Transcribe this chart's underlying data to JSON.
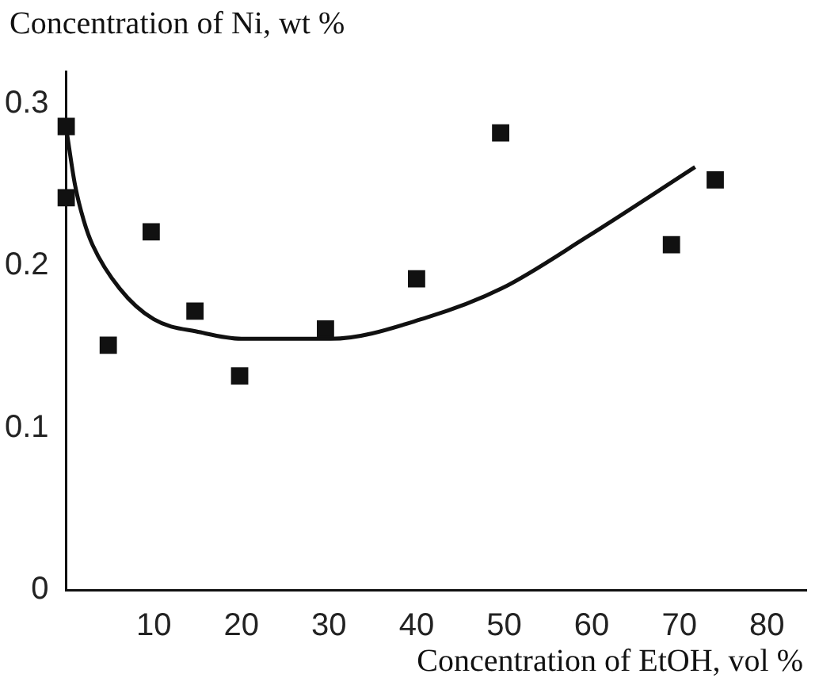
{
  "chart_data": {
    "type": "scatter",
    "xlabel": "Concentration of EtOH, vol %",
    "ylabel": "Concentration of Ni, wt %",
    "xlim": [
      0,
      84.5
    ],
    "xticks": [
      10,
      20,
      30,
      40,
      50,
      60,
      70,
      80
    ],
    "ylim": [
      0,
      0.32
    ],
    "yticks": [
      0,
      0.1,
      0.2,
      0.3
    ],
    "grid": false,
    "legend": false,
    "marker": "square",
    "series": [
      {
        "color": "#111111",
        "x": [
          0,
          0,
          4.8,
          9.7,
          14.7,
          19.8,
          29.6,
          40,
          49.6,
          69.1,
          74.1
        ],
        "values": [
          0.286,
          0.242,
          0.151,
          0.221,
          0.172,
          0.132,
          0.161,
          0.192,
          0.282,
          0.213,
          0.253
        ]
      },
      {
        "type": "line",
        "color": "#111111",
        "marker": "none",
        "line_style": "solid",
        "x": [
          0,
          1,
          2,
          3,
          6.1,
          10,
          15.3,
          20,
          30.2,
          41.1,
          49.7,
          59.5,
          71.8
        ],
        "values": [
          0.285,
          0.25,
          0.228,
          0.213,
          0.186,
          0.167,
          0.159,
          0.155,
          0.155,
          0.168,
          0.186,
          0.218,
          0.261
        ]
      }
    ]
  }
}
